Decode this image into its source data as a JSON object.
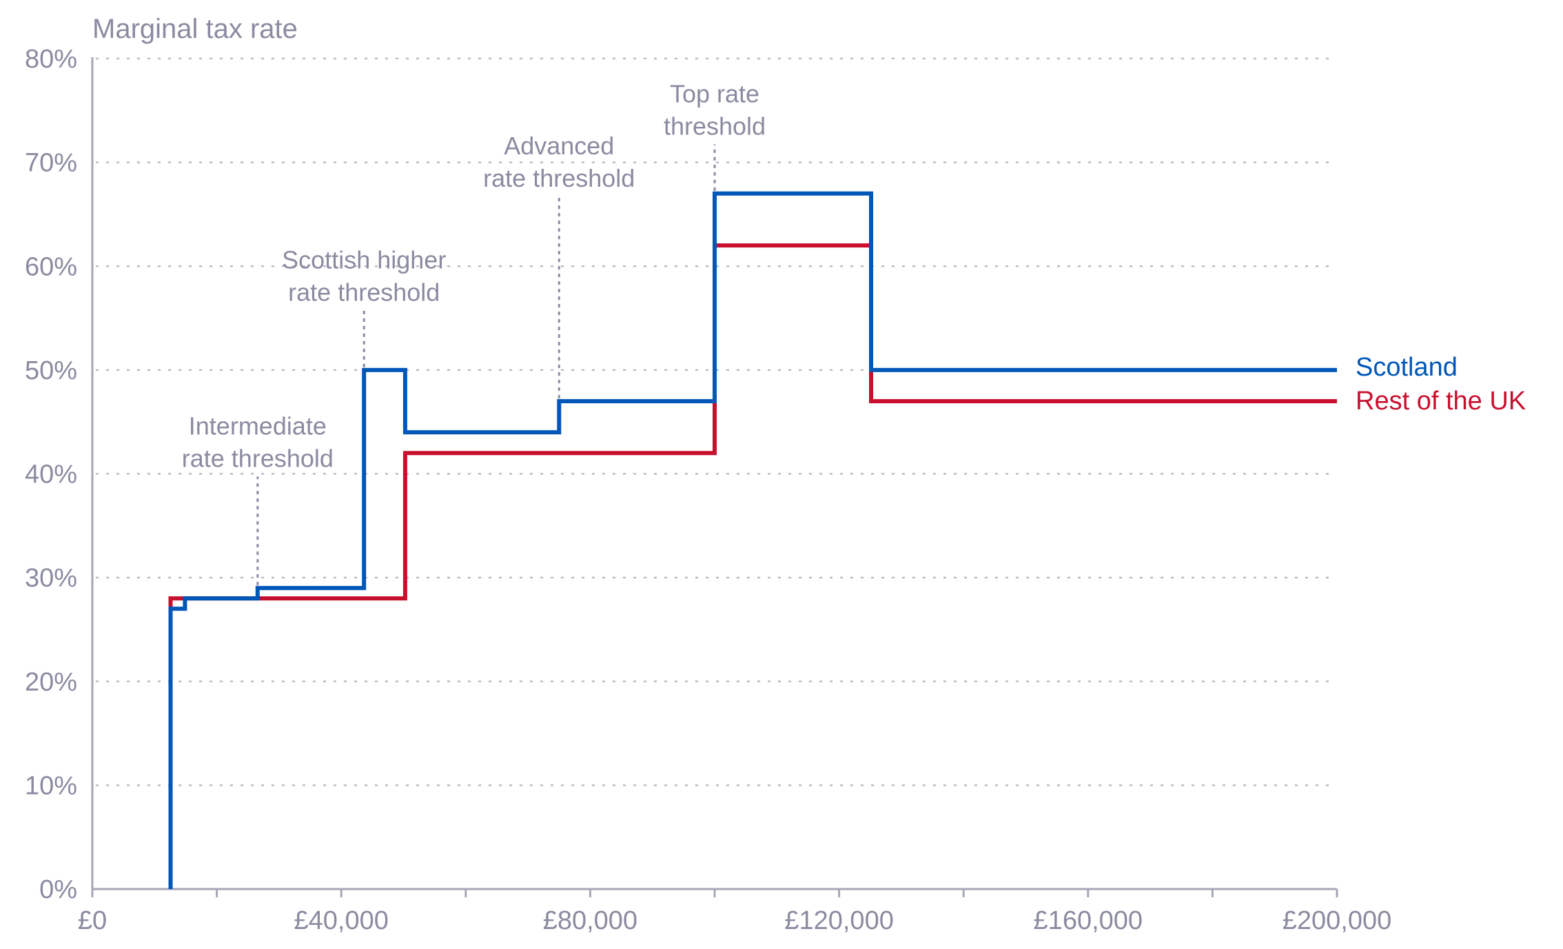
{
  "chart_data": {
    "type": "line",
    "step": true,
    "ylabel": "Marginal tax rate",
    "xlabel": "",
    "xlim": [
      0,
      200000
    ],
    "ylim": [
      0,
      80
    ],
    "x_ticks": [
      0,
      20000,
      40000,
      60000,
      80000,
      100000,
      120000,
      140000,
      160000,
      180000,
      200000
    ],
    "x_tick_labels": [
      {
        "value": 0,
        "label": "£0"
      },
      {
        "value": 40000,
        "label": "£40,000"
      },
      {
        "value": 80000,
        "label": "£80,000"
      },
      {
        "value": 120000,
        "label": "£120,000"
      },
      {
        "value": 160000,
        "label": "£160,000"
      },
      {
        "value": 200000,
        "label": "£200,000"
      }
    ],
    "y_ticks": [
      {
        "value": 0,
        "label": "0%"
      },
      {
        "value": 10,
        "label": "10%"
      },
      {
        "value": 20,
        "label": "20%"
      },
      {
        "value": 30,
        "label": "30%"
      },
      {
        "value": 40,
        "label": "40%"
      },
      {
        "value": 50,
        "label": "50%"
      },
      {
        "value": 60,
        "label": "60%"
      },
      {
        "value": 70,
        "label": "70%"
      },
      {
        "value": 80,
        "label": "80%"
      }
    ],
    "grid": "horizontal dotted",
    "legend_placement": "right, at line ends",
    "series": [
      {
        "name": "Rest of the UK",
        "color": "#c8102e",
        "points": [
          [
            12570,
            0
          ],
          [
            12570,
            28
          ],
          [
            50270,
            28
          ],
          [
            50270,
            42
          ],
          [
            100000,
            42
          ],
          [
            100000,
            62
          ],
          [
            125140,
            62
          ],
          [
            125140,
            47
          ],
          [
            200000,
            47
          ]
        ]
      },
      {
        "name": "Scotland",
        "color": "#0057b8",
        "points": [
          [
            12570,
            0
          ],
          [
            12570,
            27
          ],
          [
            14880,
            27
          ],
          [
            14880,
            28
          ],
          [
            26560,
            28
          ],
          [
            26560,
            29
          ],
          [
            43660,
            29
          ],
          [
            43660,
            50
          ],
          [
            50270,
            50
          ],
          [
            50270,
            44
          ],
          [
            75000,
            44
          ],
          [
            75000,
            47
          ],
          [
            100000,
            47
          ],
          [
            100000,
            67
          ],
          [
            125140,
            67
          ],
          [
            125140,
            50
          ],
          [
            200000,
            50
          ]
        ]
      }
    ],
    "annotations": [
      {
        "x": 26560,
        "y_from": 29,
        "y_to": 40,
        "lines": [
          "Intermediate",
          "rate threshold"
        ]
      },
      {
        "x": 43660,
        "y_from": 50,
        "y_to": 56,
        "lines": [
          "Scottish higher",
          "rate threshold"
        ]
      },
      {
        "x": 75000,
        "y_from": 47,
        "y_to": 67,
        "lines": [
          "Advanced",
          "rate threshold"
        ]
      },
      {
        "x": 100000,
        "y_from": 67,
        "y_to": 72,
        "lines": [
          "Top rate",
          "threshold"
        ]
      }
    ]
  }
}
